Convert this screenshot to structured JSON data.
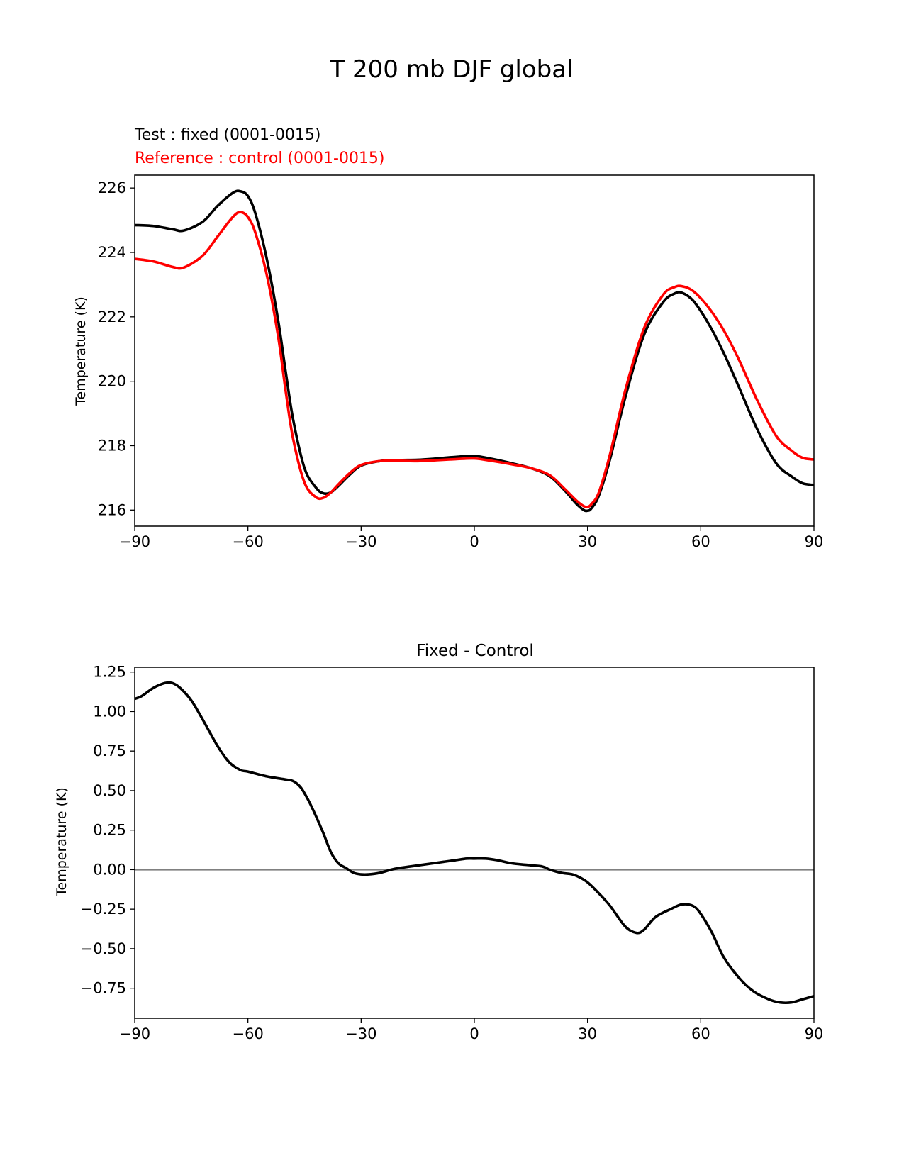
{
  "figure": {
    "title": "T 200 mb DJF global"
  },
  "chart_data": [
    {
      "type": "line",
      "title": "",
      "legend_text": [
        "Test : fixed (0001-0015)",
        "Reference : control (0001-0015)"
      ],
      "xlabel": "",
      "ylabel": "Temperature (K)",
      "xlim": [
        -90,
        90
      ],
      "ylim": [
        215.5,
        226.4
      ],
      "xticks": [
        "−90",
        "−60",
        "−30",
        "0",
        "30",
        "60",
        "90"
      ],
      "xtick_values": [
        -90,
        -60,
        -30,
        0,
        30,
        60,
        90
      ],
      "yticks": [
        "216",
        "218",
        "220",
        "222",
        "224",
        "226"
      ],
      "ytick_values": [
        216,
        218,
        220,
        222,
        224,
        226
      ],
      "grid": false,
      "series": [
        {
          "color": "#000000",
          "x": [
            -90,
            -85,
            -80,
            -77,
            -72,
            -68,
            -64,
            -62,
            -60,
            -58,
            -55,
            -52,
            -50,
            -48,
            -45,
            -42,
            -40,
            -38,
            -36,
            -33,
            -30,
            -25,
            -20,
            -15,
            -10,
            -5,
            0,
            5,
            10,
            15,
            20,
            24,
            27,
            29,
            30,
            31,
            33,
            36,
            40,
            45,
            50,
            53,
            55,
            58,
            62,
            66,
            70,
            75,
            80,
            84,
            87,
            90
          ],
          "y": [
            224.85,
            224.82,
            224.72,
            224.68,
            224.95,
            225.45,
            225.85,
            225.9,
            225.75,
            225.2,
            223.8,
            221.9,
            220.3,
            218.8,
            217.3,
            216.7,
            216.52,
            216.55,
            216.75,
            217.1,
            217.38,
            217.52,
            217.55,
            217.56,
            217.6,
            217.65,
            217.68,
            217.58,
            217.45,
            217.3,
            217.05,
            216.6,
            216.2,
            216.0,
            215.98,
            216.05,
            216.45,
            217.6,
            219.5,
            221.45,
            222.45,
            222.72,
            222.75,
            222.5,
            221.8,
            220.9,
            219.85,
            218.5,
            217.45,
            217.05,
            216.83,
            216.78
          ]
        },
        {
          "color": "#ff0000",
          "x": [
            -90,
            -85,
            -80,
            -77,
            -72,
            -68,
            -64,
            -62,
            -60,
            -58,
            -55,
            -52,
            -50,
            -48,
            -45,
            -42,
            -40,
            -38,
            -36,
            -33,
            -30,
            -25,
            -20,
            -15,
            -10,
            -5,
            0,
            5,
            10,
            15,
            20,
            24,
            27,
            29,
            30,
            31,
            33,
            36,
            40,
            45,
            50,
            53,
            55,
            58,
            62,
            66,
            70,
            75,
            80,
            84,
            87,
            90
          ],
          "y": [
            223.8,
            223.72,
            223.55,
            223.53,
            223.9,
            224.5,
            225.1,
            225.25,
            225.1,
            224.6,
            223.3,
            221.4,
            219.7,
            218.2,
            216.85,
            216.4,
            216.38,
            216.55,
            216.8,
            217.15,
            217.4,
            217.52,
            217.53,
            217.52,
            217.55,
            217.58,
            217.6,
            217.52,
            217.42,
            217.3,
            217.08,
            216.65,
            216.3,
            216.12,
            216.1,
            216.18,
            216.55,
            217.75,
            219.72,
            221.65,
            222.68,
            222.92,
            222.95,
            222.8,
            222.3,
            221.6,
            220.7,
            219.4,
            218.3,
            217.85,
            217.62,
            217.57
          ]
        }
      ]
    },
    {
      "type": "line",
      "title": "Fixed - Control",
      "xlabel": "",
      "ylabel": "Temperature (K)",
      "xlim": [
        -90,
        90
      ],
      "ylim": [
        -0.94,
        1.28
      ],
      "xticks": [
        "−90",
        "−60",
        "−30",
        "0",
        "30",
        "60",
        "90"
      ],
      "xtick_values": [
        -90,
        -60,
        -30,
        0,
        30,
        60,
        90
      ],
      "yticks": [
        "1.25",
        "1.00",
        "0.75",
        "0.50",
        "0.25",
        "0.00",
        "−0.25",
        "−0.50",
        "−0.75"
      ],
      "ytick_values": [
        1.25,
        1.0,
        0.75,
        0.5,
        0.25,
        0.0,
        -0.25,
        -0.5,
        -0.75
      ],
      "grid": false,
      "zero_line": {
        "y": 0,
        "color": "#808080"
      },
      "series": [
        {
          "color": "#000000",
          "x": [
            -90,
            -88,
            -85,
            -82,
            -80,
            -78,
            -75,
            -72,
            -68,
            -65,
            -62,
            -60,
            -55,
            -50,
            -48,
            -46,
            -44,
            -42,
            -40,
            -38,
            -36,
            -34,
            -32,
            -30,
            -28,
            -25,
            -22,
            -20,
            -17,
            -14,
            -11,
            -8,
            -5,
            -2,
            0,
            3,
            6,
            10,
            14,
            18,
            20,
            23,
            26,
            28,
            30,
            33,
            36,
            40,
            43,
            45,
            48,
            52,
            55,
            58,
            60,
            63,
            66,
            70,
            74,
            78,
            81,
            84,
            87,
            90
          ],
          "y": [
            1.08,
            1.1,
            1.15,
            1.18,
            1.18,
            1.15,
            1.07,
            0.95,
            0.78,
            0.68,
            0.63,
            0.62,
            0.59,
            0.57,
            0.56,
            0.52,
            0.44,
            0.34,
            0.23,
            0.11,
            0.04,
            0.01,
            -0.02,
            -0.03,
            -0.03,
            -0.02,
            0.0,
            0.01,
            0.02,
            0.03,
            0.04,
            0.05,
            0.06,
            0.07,
            0.07,
            0.07,
            0.06,
            0.04,
            0.03,
            0.02,
            0.0,
            -0.02,
            -0.03,
            -0.05,
            -0.08,
            -0.15,
            -0.23,
            -0.36,
            -0.4,
            -0.38,
            -0.3,
            -0.25,
            -0.22,
            -0.23,
            -0.28,
            -0.4,
            -0.55,
            -0.68,
            -0.77,
            -0.82,
            -0.84,
            -0.84,
            -0.82,
            -0.8
          ]
        }
      ]
    }
  ]
}
